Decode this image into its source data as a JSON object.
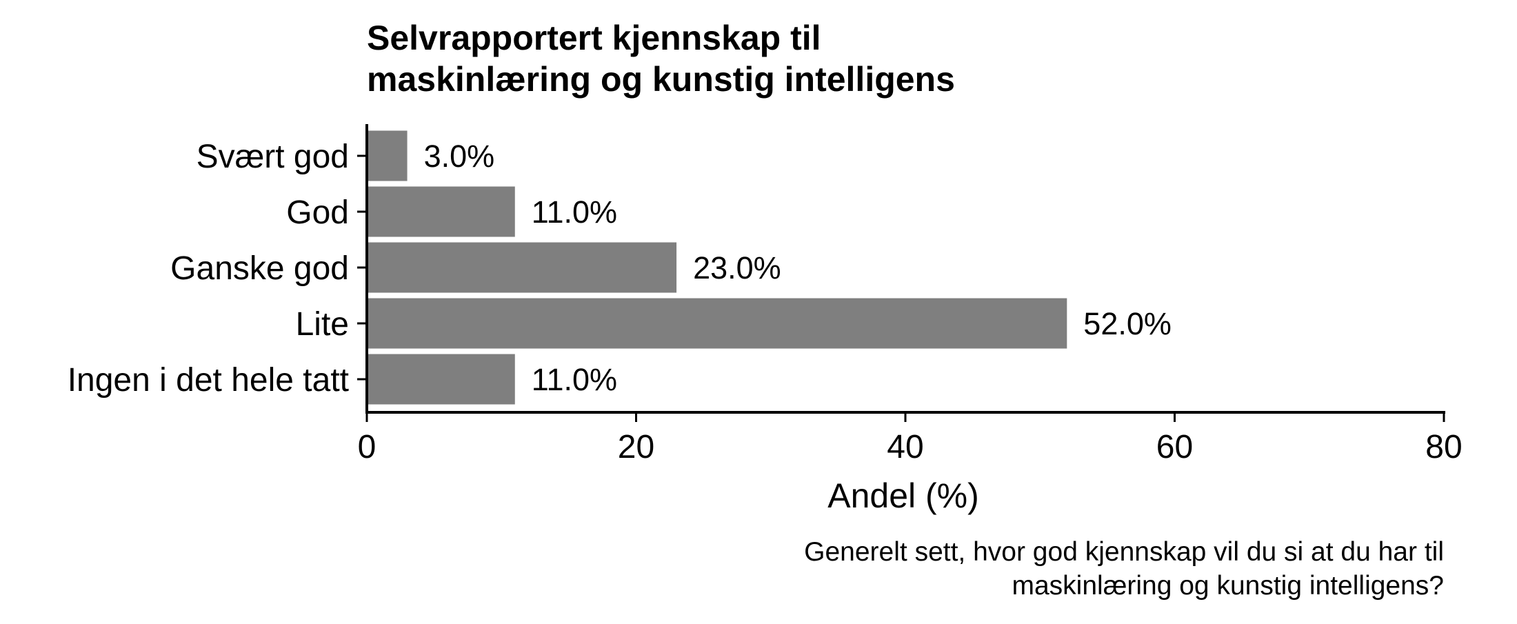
{
  "chart_data": {
    "type": "bar",
    "orientation": "horizontal",
    "title_lines": [
      "Selvrapportert kjennskap til",
      "maskinlæring og kunstig intelligens"
    ],
    "categories": [
      "Svært god",
      "God",
      "Ganske god",
      "Lite",
      "Ingen i det hele tatt"
    ],
    "values": [
      3.0,
      11.0,
      23.0,
      52.0,
      11.0
    ],
    "data_labels": [
      "3.0%",
      "11.0%",
      "23.0%",
      "52.0%",
      "11.0%"
    ],
    "xlabel": "Andel (%)",
    "ylabel": "",
    "xlim": [
      0,
      80
    ],
    "x_ticks": [
      0,
      20,
      40,
      60,
      80
    ],
    "x_tick_labels": [
      "0",
      "20",
      "40",
      "60",
      "80"
    ],
    "grid": false,
    "legend": "none",
    "bar_color": "#7f7f7f",
    "caption_lines": [
      "Generelt sett, hvor god kjennskap vil du si at du har til",
      "maskinlæring og kunstig intelligens?"
    ]
  }
}
